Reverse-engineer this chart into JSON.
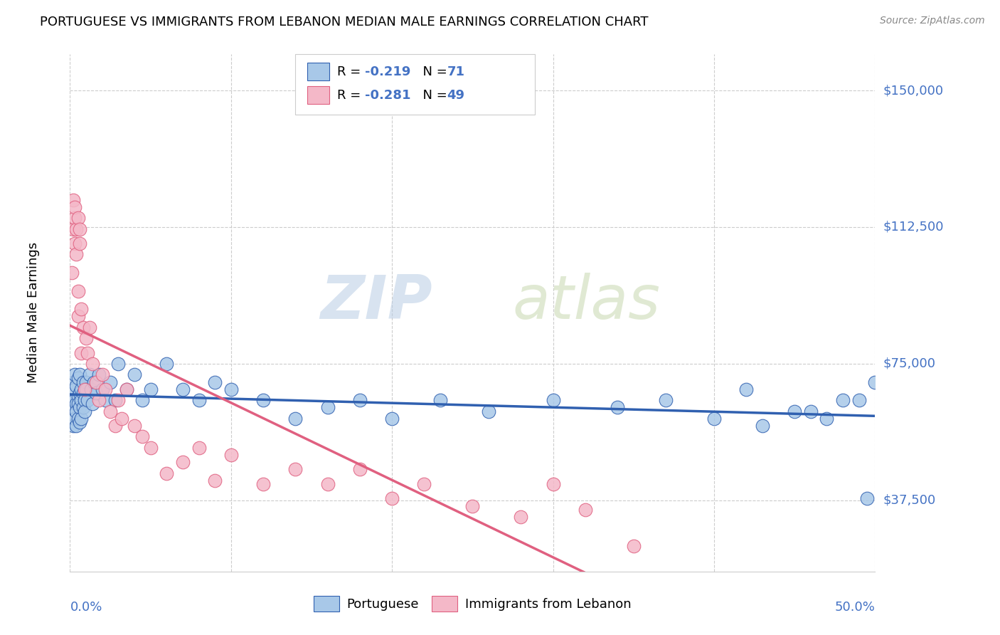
{
  "title": "PORTUGUESE VS IMMIGRANTS FROM LEBANON MEDIAN MALE EARNINGS CORRELATION CHART",
  "source": "Source: ZipAtlas.com",
  "ylabel": "Median Male Earnings",
  "yticks": [
    37500,
    75000,
    112500,
    150000
  ],
  "ytick_labels": [
    "$37,500",
    "$75,000",
    "$112,500",
    "$150,000"
  ],
  "xmin": 0.0,
  "xmax": 0.5,
  "ymin": 18000,
  "ymax": 160000,
  "watermark_zip": "ZIP",
  "watermark_atlas": "atlas",
  "legend_label1": "Portuguese",
  "legend_label2": "Immigrants from Lebanon",
  "r1": "-0.219",
  "n1": "71",
  "r2": "-0.281",
  "n2": "49",
  "color_blue": "#a8c8e8",
  "color_pink": "#f4b8c8",
  "color_blue_dark": "#3060b0",
  "color_pink_dark": "#e06080",
  "color_label": "#4472c4",
  "color_grid": "#cccccc",
  "portuguese_x": [
    0.001,
    0.002,
    0.002,
    0.002,
    0.003,
    0.003,
    0.003,
    0.003,
    0.004,
    0.004,
    0.004,
    0.004,
    0.005,
    0.005,
    0.005,
    0.005,
    0.006,
    0.006,
    0.006,
    0.006,
    0.007,
    0.007,
    0.007,
    0.008,
    0.008,
    0.008,
    0.009,
    0.009,
    0.01,
    0.01,
    0.011,
    0.012,
    0.013,
    0.014,
    0.015,
    0.016,
    0.018,
    0.02,
    0.022,
    0.025,
    0.028,
    0.03,
    0.035,
    0.04,
    0.045,
    0.05,
    0.06,
    0.07,
    0.08,
    0.09,
    0.1,
    0.12,
    0.14,
    0.16,
    0.18,
    0.2,
    0.23,
    0.26,
    0.3,
    0.34,
    0.37,
    0.4,
    0.42,
    0.45,
    0.47,
    0.49,
    0.5,
    0.43,
    0.46,
    0.48,
    0.495
  ],
  "portuguese_y": [
    65000,
    63000,
    70000,
    58000,
    65000,
    68000,
    60000,
    72000,
    64000,
    62000,
    69000,
    58000,
    66000,
    71000,
    60000,
    64000,
    67000,
    63000,
    72000,
    59000,
    68000,
    65000,
    60000,
    70000,
    63000,
    67000,
    65000,
    62000,
    70000,
    68000,
    65000,
    72000,
    68000,
    64000,
    70000,
    67000,
    72000,
    68000,
    65000,
    70000,
    65000,
    75000,
    68000,
    72000,
    65000,
    68000,
    75000,
    68000,
    65000,
    70000,
    68000,
    65000,
    60000,
    63000,
    65000,
    60000,
    65000,
    62000,
    65000,
    63000,
    65000,
    60000,
    68000,
    62000,
    60000,
    65000,
    70000,
    58000,
    62000,
    65000,
    38000
  ],
  "lebanon_x": [
    0.001,
    0.002,
    0.002,
    0.003,
    0.003,
    0.003,
    0.004,
    0.004,
    0.005,
    0.005,
    0.005,
    0.006,
    0.006,
    0.007,
    0.007,
    0.008,
    0.009,
    0.01,
    0.011,
    0.012,
    0.014,
    0.016,
    0.018,
    0.02,
    0.022,
    0.025,
    0.028,
    0.03,
    0.032,
    0.035,
    0.04,
    0.045,
    0.05,
    0.06,
    0.07,
    0.08,
    0.09,
    0.1,
    0.12,
    0.14,
    0.16,
    0.18,
    0.2,
    0.22,
    0.25,
    0.28,
    0.3,
    0.32,
    0.35
  ],
  "lebanon_y": [
    100000,
    112000,
    120000,
    115000,
    108000,
    118000,
    105000,
    112000,
    88000,
    95000,
    115000,
    108000,
    112000,
    90000,
    78000,
    85000,
    68000,
    82000,
    78000,
    85000,
    75000,
    70000,
    65000,
    72000,
    68000,
    62000,
    58000,
    65000,
    60000,
    68000,
    58000,
    55000,
    52000,
    45000,
    48000,
    52000,
    43000,
    50000,
    42000,
    46000,
    42000,
    46000,
    38000,
    42000,
    36000,
    33000,
    42000,
    35000,
    25000
  ]
}
